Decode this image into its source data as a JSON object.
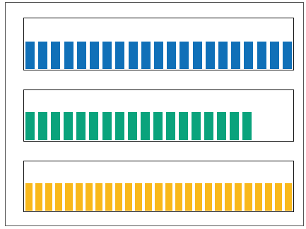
{
  "meters": [
    {
      "id": "meter-1",
      "fill_fraction": 1.0,
      "segment_count": 21,
      "color": "#1070b8"
    },
    {
      "id": "meter-2",
      "fill_fraction": 0.85,
      "segment_count": 18,
      "color": "#0aa37c"
    },
    {
      "id": "meter-3",
      "fill_fraction": 1.0,
      "segment_count": 27,
      "color": "#f9b81a"
    }
  ]
}
